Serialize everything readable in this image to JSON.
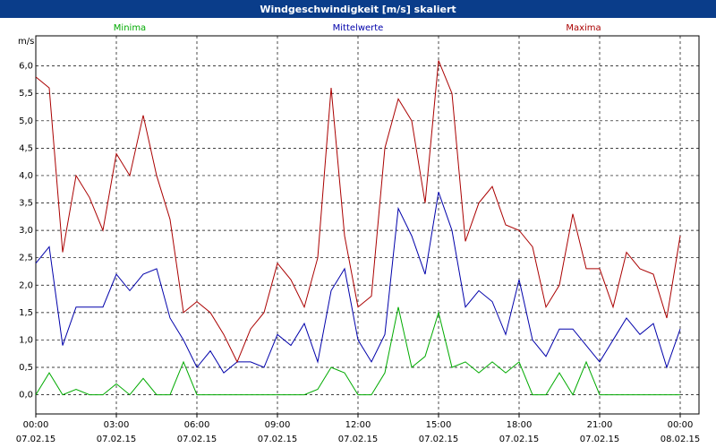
{
  "chart_data": {
    "type": "line",
    "title": "Windgeschwindigkeit [m/s] skaliert",
    "ylabel": "m/s",
    "xlim": [
      0,
      24.7
    ],
    "ylim": [
      -0.35,
      6.55
    ],
    "xticks": [
      {
        "value": 0,
        "label": [
          "00:00",
          "07.02.15"
        ]
      },
      {
        "value": 3,
        "label": [
          "03:00",
          "07.02.15"
        ]
      },
      {
        "value": 6,
        "label": [
          "06:00",
          "07.02.15"
        ]
      },
      {
        "value": 9,
        "label": [
          "09:00",
          "07.02.15"
        ]
      },
      {
        "value": 12,
        "label": [
          "12:00",
          "07.02.15"
        ]
      },
      {
        "value": 15,
        "label": [
          "15:00",
          "07.02.15"
        ]
      },
      {
        "value": 18,
        "label": [
          "18:00",
          "07.02.15"
        ]
      },
      {
        "value": 21,
        "label": [
          "21:00",
          "07.02.15"
        ]
      },
      {
        "value": 24,
        "label": [
          "00:00",
          "08.02.15"
        ]
      }
    ],
    "yticks": [
      {
        "value": 0,
        "label": "0,0"
      },
      {
        "value": 0.5,
        "label": "0,5"
      },
      {
        "value": 1,
        "label": "1,0"
      },
      {
        "value": 1.5,
        "label": "1,5"
      },
      {
        "value": 2,
        "label": "2,0"
      },
      {
        "value": 2.5,
        "label": "2,5"
      },
      {
        "value": 3,
        "label": "3,0"
      },
      {
        "value": 3.5,
        "label": "3,5"
      },
      {
        "value": 4,
        "label": "4,0"
      },
      {
        "value": 4.5,
        "label": "4,5"
      },
      {
        "value": 5,
        "label": "5,0"
      },
      {
        "value": 5.5,
        "label": "5,5"
      },
      {
        "value": 6,
        "label": "6,0"
      }
    ],
    "grid": true,
    "x": [
      0,
      0.5,
      1,
      1.5,
      2,
      2.5,
      3,
      3.5,
      4,
      4.5,
      5,
      5.5,
      6,
      6.5,
      7,
      7.5,
      8,
      8.5,
      9,
      9.5,
      10,
      10.5,
      11,
      11.5,
      12,
      12.5,
      13,
      13.5,
      14,
      14.5,
      15,
      15.5,
      16,
      16.5,
      17,
      17.5,
      18,
      18.5,
      19,
      19.5,
      20,
      20.5,
      21,
      21.5,
      22,
      22.5,
      23,
      23.5,
      24
    ],
    "series": [
      {
        "name": "Minima",
        "color": "#00aa00",
        "values": [
          0,
          0.4,
          0,
          0.1,
          0,
          0,
          0.2,
          0,
          0.3,
          0,
          0,
          0.6,
          0,
          0,
          0,
          0,
          0,
          0,
          0,
          0,
          0,
          0.1,
          0.5,
          0.4,
          0,
          0,
          0.4,
          1.6,
          0.5,
          0.7,
          1.5,
          0.5,
          0.6,
          0.4,
          0.6,
          0.4,
          0.6,
          0,
          0,
          0.4,
          0,
          0.6,
          0,
          0,
          0,
          0,
          0,
          0,
          0
        ]
      },
      {
        "name": "Mittelwerte",
        "color": "#0000aa",
        "values": [
          2.4,
          2.7,
          0.9,
          1.6,
          1.6,
          1.6,
          2.2,
          1.9,
          2.2,
          2.3,
          1.4,
          1,
          0.5,
          0.8,
          0.4,
          0.6,
          0.6,
          0.5,
          1.1,
          0.9,
          1.3,
          0.6,
          1.9,
          2.3,
          1,
          0.6,
          1.1,
          3.4,
          2.9,
          2.2,
          3.7,
          3,
          1.6,
          1.9,
          1.7,
          1.1,
          2.1,
          1,
          0.7,
          1.2,
          1.2,
          0.9,
          0.6,
          1,
          1.4,
          1.1,
          1.3,
          0.5,
          1.2
        ]
      },
      {
        "name": "Maxima",
        "color": "#aa0000",
        "values": [
          5.8,
          5.6,
          2.6,
          4,
          3.6,
          3,
          4.4,
          4,
          5.1,
          4,
          3.2,
          1.5,
          1.7,
          1.5,
          1.1,
          0.6,
          1.2,
          1.5,
          2.4,
          2.1,
          1.6,
          2.5,
          5.6,
          2.9,
          1.6,
          1.8,
          4.5,
          5.4,
          5,
          3.5,
          6.1,
          5.5,
          2.8,
          3.5,
          3.8,
          3.1,
          3,
          2.7,
          1.6,
          2,
          3.3,
          2.3,
          2.3,
          1.6,
          2.6,
          2.3,
          2.2,
          1.4,
          2.9
        ]
      }
    ]
  }
}
